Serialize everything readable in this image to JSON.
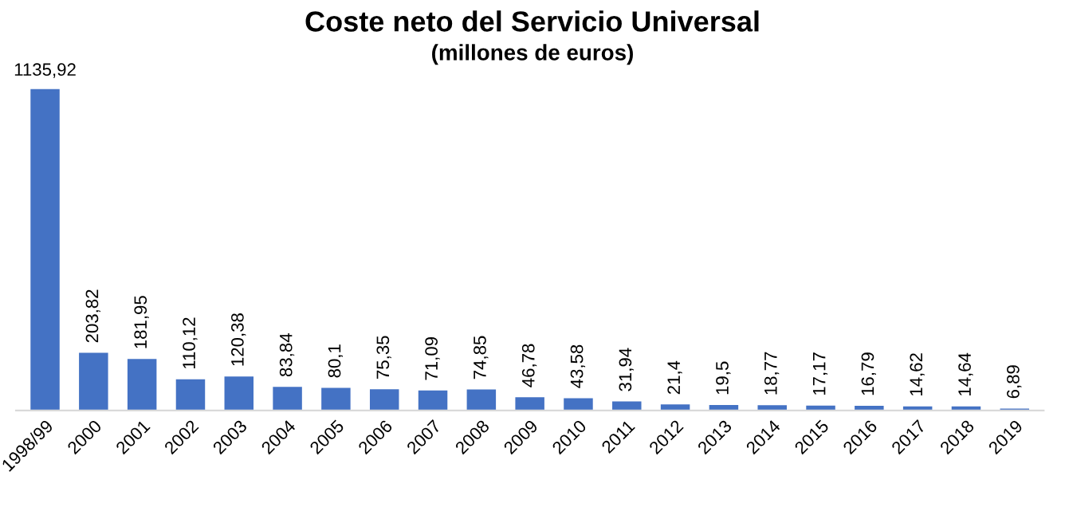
{
  "chart_data": {
    "type": "bar",
    "title": "Coste neto del Servicio Universal",
    "subtitle": "(millones de euros)",
    "categories": [
      "1998/99",
      "2000",
      "2001",
      "2002",
      "2003",
      "2004",
      "2005",
      "2006",
      "2007",
      "2008",
      "2009",
      "2010",
      "2011",
      "2012",
      "2013",
      "2014",
      "2015",
      "2016",
      "2017",
      "2018",
      "2019"
    ],
    "values": [
      1135.92,
      203.82,
      181.95,
      110.12,
      120.38,
      83.84,
      80.1,
      75.35,
      71.09,
      74.85,
      46.78,
      43.58,
      31.94,
      21.4,
      19.5,
      18.77,
      17.17,
      16.79,
      14.62,
      14.64,
      6.89
    ],
    "value_labels": [
      "1135,92",
      "203,82",
      "181,95",
      "110,12",
      "120,38",
      "83,84",
      "80,1",
      "75,35",
      "71,09",
      "74,85",
      "46,78",
      "43,58",
      "31,94",
      "21,4",
      "19,5",
      "18,77",
      "17,17",
      "16,79",
      "14,62",
      "14,64",
      "6,89"
    ],
    "color": "#4472c4",
    "tick_labels": "x",
    "grid": false,
    "legend": false
  }
}
